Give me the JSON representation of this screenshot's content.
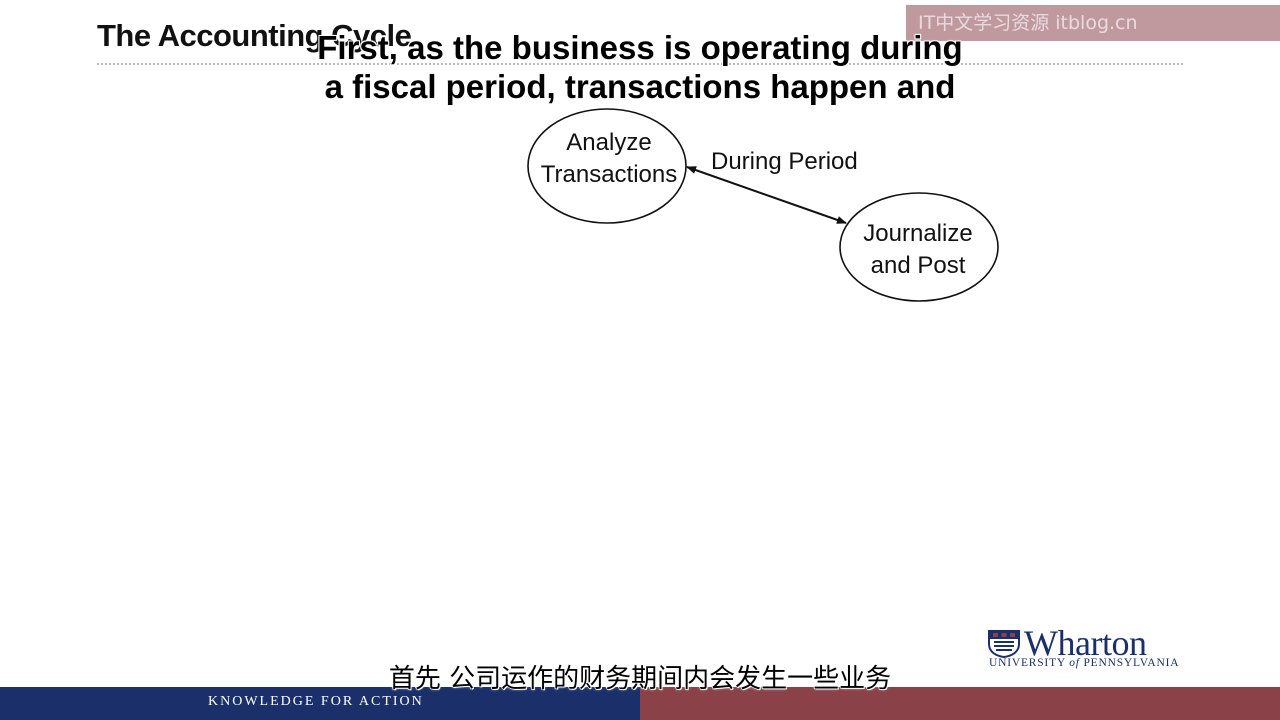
{
  "slide": {
    "title": "The Accounting Cycle",
    "tagline": "KNOWLEDGE FOR ACTION"
  },
  "watermark": {
    "text": "IT中文学习资源 itblog.cn"
  },
  "subtitles": {
    "english_line1": "First, as the business is operating during",
    "english_line2": "a fiscal period, transactions happen and",
    "chinese": "首先  公司运作的财务期间内会发生一些业务"
  },
  "diagram": {
    "nodes": [
      {
        "id": "analyze",
        "lines": [
          "Analyze",
          "Transactions"
        ]
      },
      {
        "id": "journalize",
        "lines": [
          "Journalize",
          "and Post"
        ]
      }
    ],
    "edges": [
      {
        "from": "analyze",
        "to": "journalize",
        "label": "During Period",
        "arrows": "both"
      }
    ]
  },
  "logo": {
    "name": "Wharton",
    "university_prefix": "UNIVERSITY ",
    "university_of": "of",
    "university_suffix": " PENNSYLVANIA"
  },
  "colors": {
    "navy": "#1b2f6b",
    "maroon": "#8a4248",
    "ink": "#111111"
  }
}
